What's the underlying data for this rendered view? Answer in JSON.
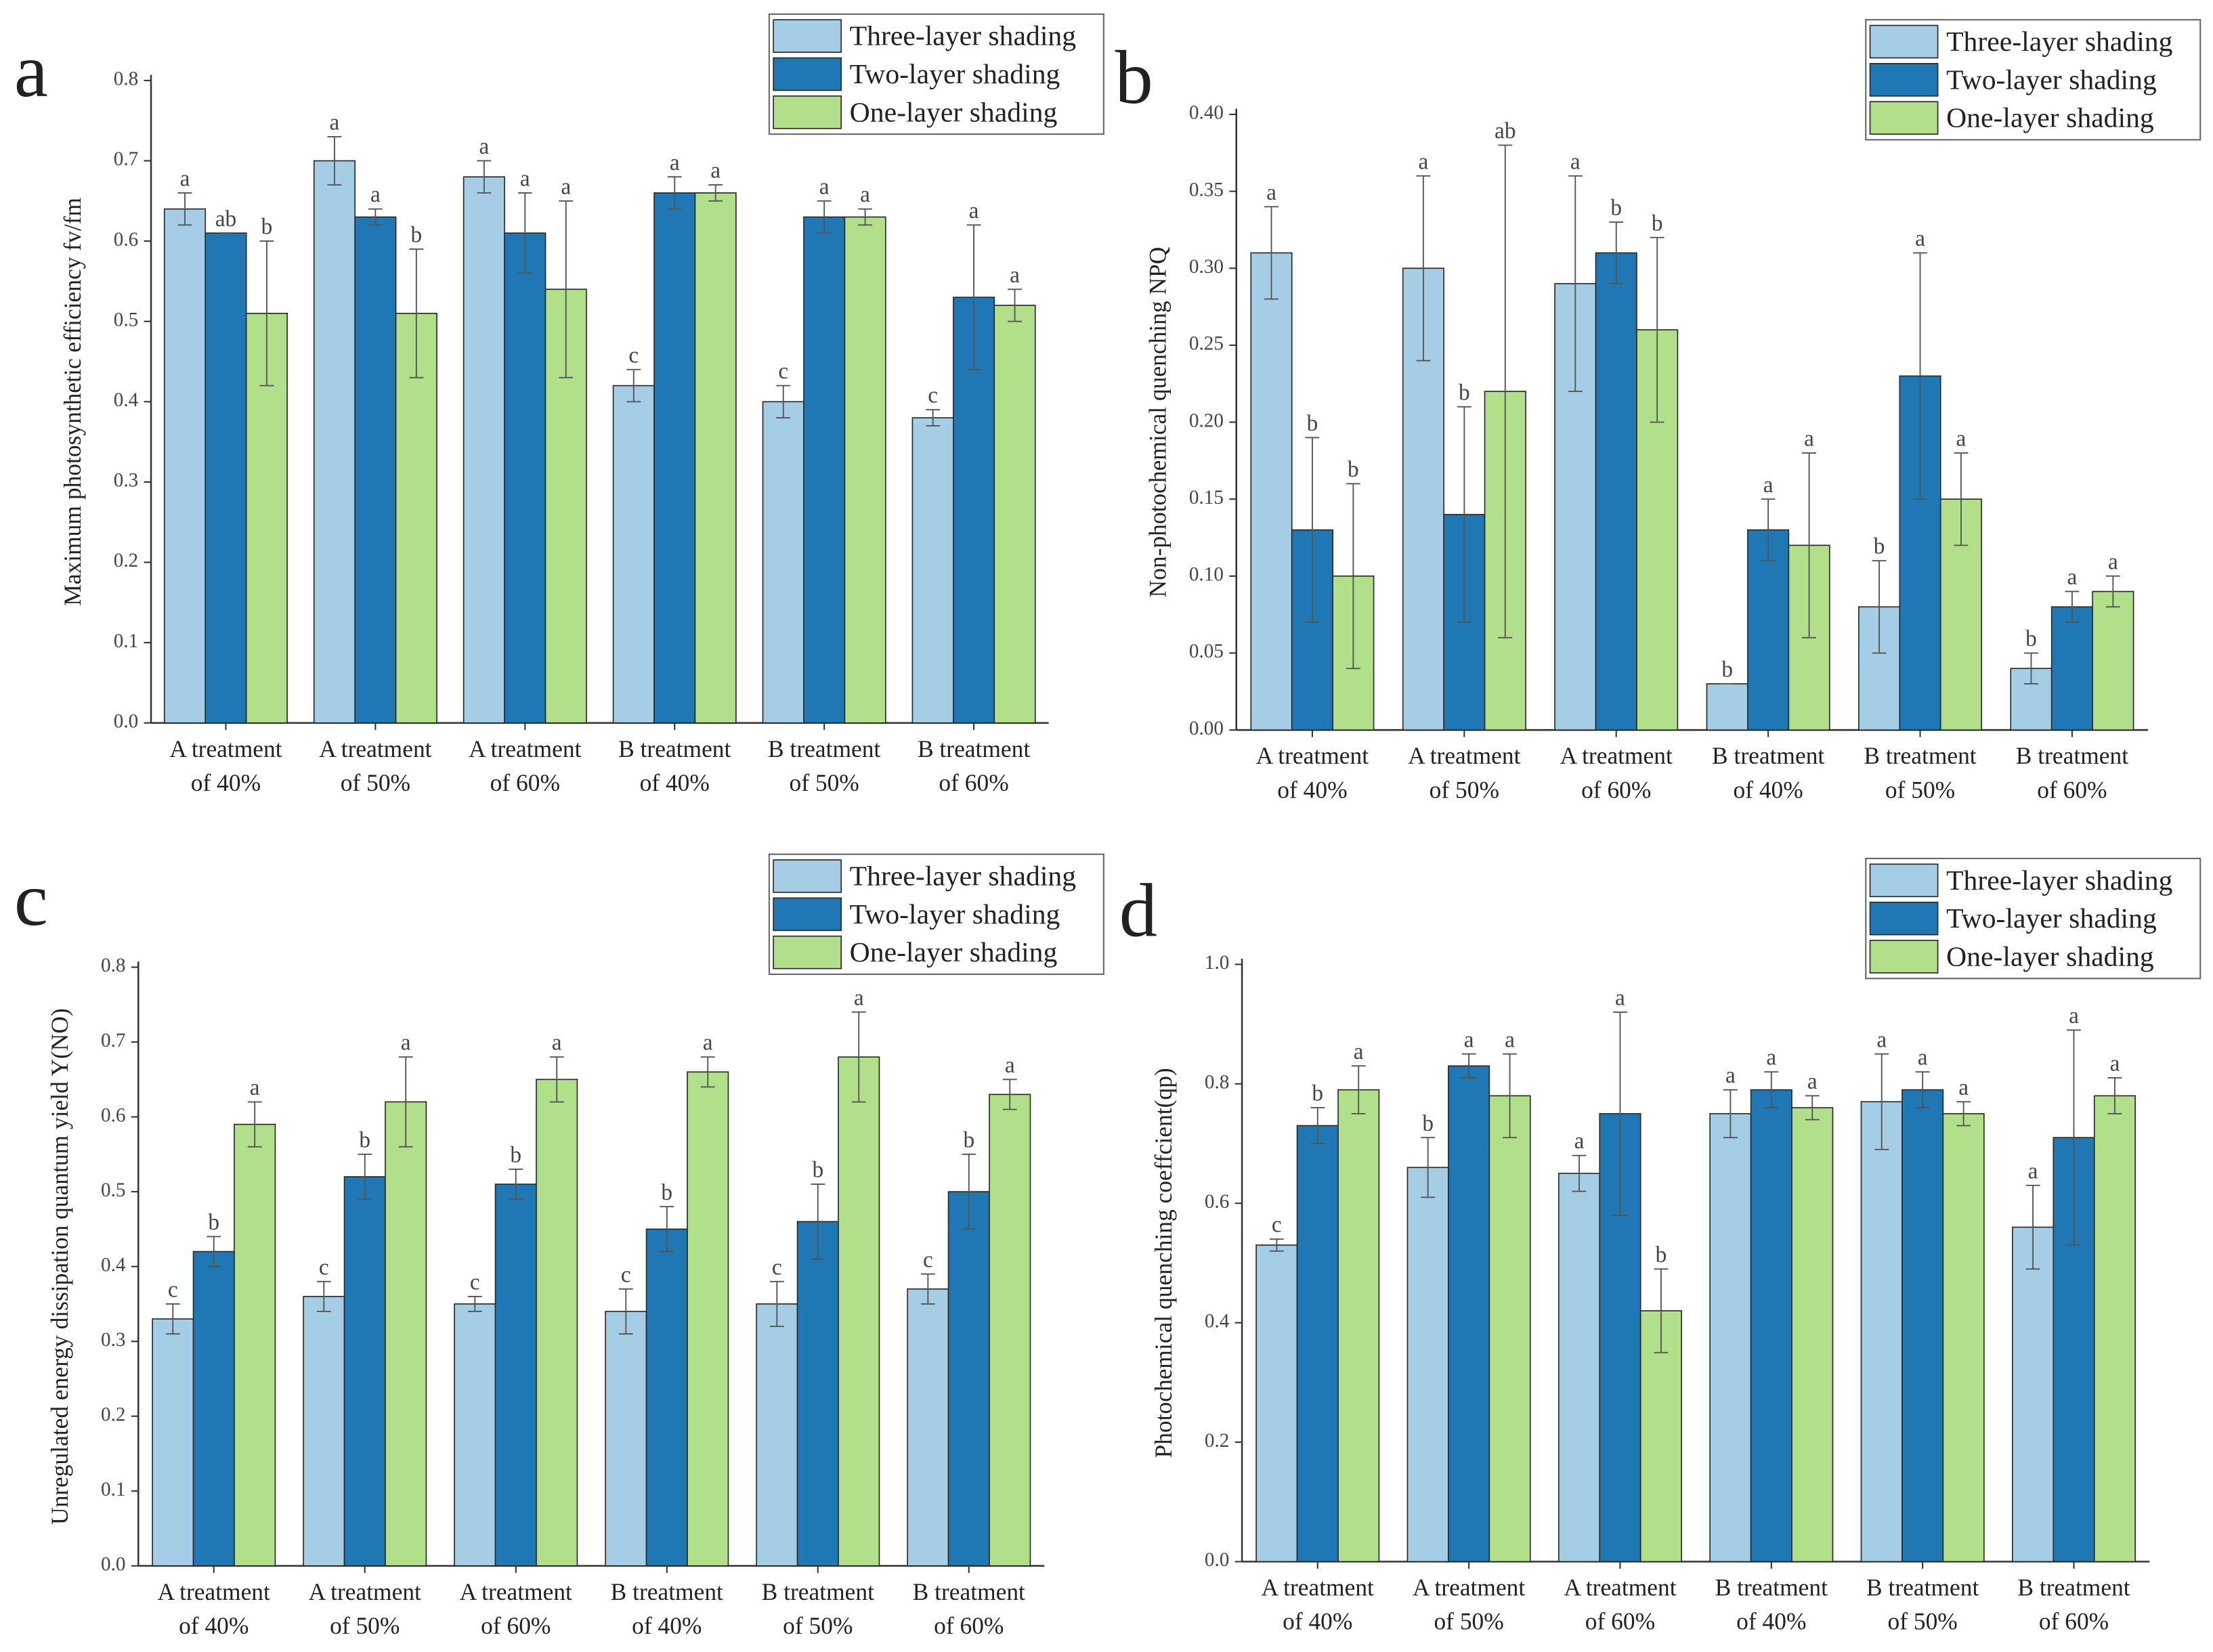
{
  "chart_data": [
    {
      "type": "bar",
      "label": "a",
      "ylabel": "Maximum photosynthetic efficiency fv/fm",
      "categories": [
        "A treatment of 40%",
        "A treatment of 50%",
        "A treatment of 60%",
        "B treatment of 40%",
        "B treatment of 50%",
        "B treatment of 60%"
      ],
      "series": [
        {
          "name": "Three-layer shading",
          "color": "#a6cde6",
          "values": [
            0.64,
            0.7,
            0.68,
            0.42,
            0.4,
            0.38
          ],
          "errors": [
            0.02,
            0.03,
            0.02,
            0.02,
            0.02,
            0.01
          ],
          "annotations": [
            "a",
            "a",
            "a",
            "c",
            "c",
            "c"
          ]
        },
        {
          "name": "Two-layer shading",
          "color": "#1f78b4",
          "values": [
            0.61,
            0.63,
            0.61,
            0.66,
            0.63,
            0.53
          ],
          "errors": [
            0,
            0.01,
            0.05,
            0.02,
            0.02,
            0.09
          ],
          "annotations": [
            "ab",
            "a",
            "a",
            "a",
            "a",
            "a"
          ]
        },
        {
          "name": "One-layer shading",
          "color": "#b2df8a",
          "values": [
            0.51,
            0.51,
            0.54,
            0.66,
            0.63,
            0.52
          ],
          "errors": [
            0.09,
            0.08,
            0.11,
            0.01,
            0.01,
            0.02
          ],
          "annotations": [
            "b",
            "b",
            "a",
            "a",
            "a",
            "a"
          ]
        }
      ],
      "ylim": [
        0,
        0.8
      ],
      "yticks": [
        {
          "value": 0,
          "label": "0.0"
        },
        0.1,
        0.2,
        0.3,
        0.4,
        0.5,
        0.6,
        0.7,
        0.8
      ],
      "legend": "top-right"
    },
    {
      "type": "bar",
      "label": "b",
      "ylabel": "Non-photochemical quenching NPQ",
      "categories": [
        "A treatment of 40%",
        "A treatment of 50%",
        "A treatment of 60%",
        "B treatment of 40%",
        "B treatment of 50%",
        "B treatment of 60%"
      ],
      "series": [
        {
          "name": "Three-layer shading",
          "color": "#a6cde6",
          "values": [
            0.31,
            0.3,
            0.29,
            0.03,
            0.08,
            0.04
          ],
          "errors": [
            0.03,
            0.06,
            0.07,
            0,
            0.03,
            0.01
          ],
          "annotations": [
            "a",
            "a",
            "a",
            "b",
            "b",
            "b"
          ]
        },
        {
          "name": "Two-layer shading",
          "color": "#1f78b4",
          "values": [
            0.13,
            0.14,
            0.31,
            0.13,
            0.23,
            0.08
          ],
          "errors": [
            0.06,
            0.07,
            0.02,
            0.02,
            0.08,
            0.01
          ],
          "annotations": [
            "b",
            "b",
            "b",
            "a",
            "a",
            "a"
          ]
        },
        {
          "name": "One-layer shading",
          "color": "#b2df8a",
          "values": [
            0.1,
            0.22,
            0.26,
            0.12,
            0.15,
            0.09
          ],
          "errors": [
            0.06,
            0.16,
            0.06,
            0.06,
            0.03,
            0.01
          ],
          "annotations": [
            "b",
            "ab",
            "b",
            "a",
            "a",
            "a"
          ]
        }
      ],
      "ylim": [
        0,
        0.4
      ],
      "yticks": [
        {
          "value": 0,
          "label": "0.00"
        },
        0.05,
        {
          "value": 0.1,
          "label": "0.10"
        },
        0.15,
        {
          "value": 0.2,
          "label": "0.20"
        },
        0.25,
        {
          "value": 0.3,
          "label": "0.30"
        },
        0.35,
        {
          "value": 0.4,
          "label": "0.40"
        }
      ],
      "legend": "top-right"
    },
    {
      "type": "bar",
      "label": "c",
      "ylabel": "Unregulated energy dissipation quantum yield Y(NO)",
      "categories": [
        "A treatment of 40%",
        "A treatment of 50%",
        "A treatment of 60%",
        "B treatment of 40%",
        "B treatment of 50%",
        "B treatment of 60%"
      ],
      "series": [
        {
          "name": "Three-layer shading",
          "color": "#a6cde6",
          "values": [
            0.33,
            0.36,
            0.35,
            0.34,
            0.35,
            0.37
          ],
          "errors": [
            0.02,
            0.02,
            0.01,
            0.03,
            0.03,
            0.02
          ],
          "annotations": [
            "c",
            "c",
            "c",
            "c",
            "c",
            "c"
          ]
        },
        {
          "name": "Two-layer shading",
          "color": "#1f78b4",
          "values": [
            0.42,
            0.52,
            0.51,
            0.45,
            0.46,
            0.5
          ],
          "errors": [
            0.02,
            0.03,
            0.02,
            0.03,
            0.05,
            0.05
          ],
          "annotations": [
            "b",
            "b",
            "b",
            "b",
            "b",
            "b"
          ]
        },
        {
          "name": "One-layer shading",
          "color": "#b2df8a",
          "values": [
            0.59,
            0.62,
            0.65,
            0.66,
            0.68,
            0.63
          ],
          "errors": [
            0.03,
            0.06,
            0.03,
            0.02,
            0.06,
            0.02
          ],
          "annotations": [
            "a",
            "a",
            "a",
            "a",
            "a",
            "a"
          ]
        }
      ],
      "ylim": [
        0,
        0.8
      ],
      "yticks": [
        {
          "value": 0,
          "label": "0.0"
        },
        0.1,
        0.2,
        0.3,
        0.4,
        0.5,
        0.6,
        0.7,
        0.8
      ],
      "legend": "top-right"
    },
    {
      "type": "bar",
      "label": "d",
      "ylabel": "Photochemical quenching coeffcient(qp)",
      "categories": [
        "A treatment of 40%",
        "A treatment of 50%",
        "A treatment of 60%",
        "B treatment of 40%",
        "B treatment of 50%",
        "B treatment of 60%"
      ],
      "series": [
        {
          "name": "Three-layer shading",
          "color": "#a6cde6",
          "values": [
            0.53,
            0.66,
            0.65,
            0.75,
            0.77,
            0.56
          ],
          "errors": [
            0.01,
            0.05,
            0.03,
            0.04,
            0.08,
            0.07
          ],
          "annotations": [
            "c",
            "b",
            "a",
            "a",
            "a",
            "a"
          ]
        },
        {
          "name": "Two-layer shading",
          "color": "#1f78b4",
          "values": [
            0.73,
            0.83,
            0.75,
            0.79,
            0.79,
            0.71
          ],
          "errors": [
            0.03,
            0.02,
            0.17,
            0.03,
            0.03,
            0.18
          ],
          "annotations": [
            "b",
            "a",
            "a",
            "a",
            "a",
            "a"
          ]
        },
        {
          "name": "One-layer shading",
          "color": "#b2df8a",
          "values": [
            0.79,
            0.78,
            0.42,
            0.76,
            0.75,
            0.78
          ],
          "errors": [
            0.04,
            0.07,
            0.07,
            0.02,
            0.02,
            0.03
          ],
          "annotations": [
            "a",
            "a",
            "b",
            "a",
            "a",
            "a"
          ]
        }
      ],
      "ylim": [
        0,
        1
      ],
      "yticks": [
        {
          "value": 0,
          "label": "0.0"
        },
        0.2,
        0.4,
        0.6,
        0.8,
        {
          "value": 1,
          "label": "1.0"
        }
      ],
      "legend": "top-right"
    }
  ]
}
